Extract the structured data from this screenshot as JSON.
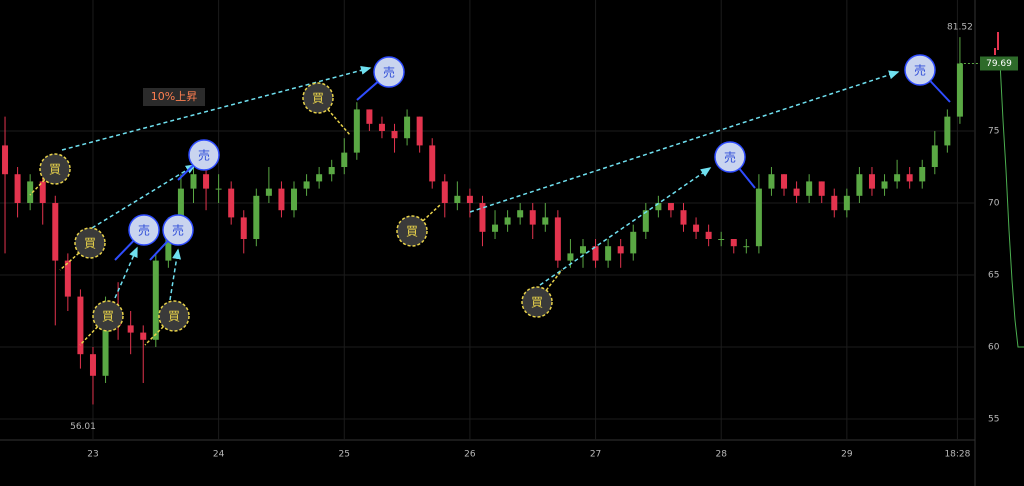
{
  "chart_data": {
    "type": "candlestick",
    "x": [
      22.3,
      22.4,
      22.5,
      22.6,
      22.7,
      22.8,
      22.9,
      23.0,
      23.1,
      23.2,
      23.3,
      23.4,
      23.5,
      23.6,
      23.7,
      23.8,
      23.9,
      24.0,
      24.1,
      24.2,
      24.3,
      24.4,
      24.5,
      24.6,
      24.7,
      24.8,
      24.9,
      25.0,
      25.1,
      25.2,
      25.3,
      25.4,
      25.5,
      25.6,
      25.7,
      25.8,
      25.9,
      26.0,
      26.1,
      26.2,
      26.3,
      26.4,
      26.5,
      26.6,
      26.7,
      26.8,
      26.9,
      27.0,
      27.1,
      27.2,
      27.3,
      27.4,
      27.5,
      27.6,
      27.7,
      27.8,
      27.9,
      28.0,
      28.1,
      28.2,
      28.3,
      28.4,
      28.5,
      28.6,
      28.7,
      28.8,
      28.9,
      29.0,
      29.1,
      29.2,
      29.3,
      29.4,
      29.5,
      29.6,
      29.7,
      29.8,
      29.9
    ],
    "open": [
      74,
      72,
      70,
      71.5,
      70,
      66,
      63.5,
      59.5,
      58,
      62.5,
      61.5,
      61,
      60.5,
      66,
      68.5,
      71,
      72,
      71,
      71,
      69,
      67.5,
      70.5,
      71,
      69.5,
      71,
      71.5,
      72,
      72.5,
      73.5,
      76.5,
      75.5,
      75,
      74.5,
      76,
      74,
      71.5,
      70,
      70.5,
      70,
      68,
      68.5,
      69,
      69.5,
      68.5,
      69,
      66,
      66.5,
      67,
      66,
      67,
      66.5,
      68,
      69.5,
      70,
      69.5,
      68.5,
      68,
      67.5,
      67.5,
      67,
      67,
      71,
      72,
      71,
      70.5,
      71.5,
      70.5,
      69.5,
      70.5,
      72,
      71,
      71.5,
      72,
      71.5,
      72.5,
      74,
      76
    ],
    "high": [
      76,
      72.5,
      72,
      71.8,
      70.5,
      66.5,
      64,
      60,
      63.5,
      64.5,
      62.5,
      61.5,
      66.5,
      69,
      72,
      73,
      72.5,
      72,
      71.5,
      69.5,
      71,
      72.5,
      71.5,
      71.5,
      72,
      72.5,
      73,
      74.5,
      77,
      76.5,
      76,
      75.5,
      76.5,
      76,
      74.5,
      72,
      71.5,
      71,
      70.5,
      69.5,
      69.5,
      70,
      70,
      70,
      69.5,
      67.5,
      67.5,
      67.5,
      67.5,
      67.5,
      68.5,
      70,
      70.5,
      70,
      70,
      69,
      68.5,
      68,
      67.5,
      67.5,
      72,
      72.5,
      72,
      71.5,
      72,
      71.5,
      71,
      71,
      72.5,
      72.5,
      72,
      73,
      72.5,
      73,
      75,
      76.5,
      81.52
    ],
    "low": [
      66.5,
      69,
      69.5,
      68.5,
      61.5,
      62.5,
      58.5,
      56.01,
      57.5,
      60.5,
      59.5,
      57.5,
      60,
      65.5,
      68,
      70,
      69.5,
      70,
      68.5,
      66.5,
      67,
      70,
      69,
      69,
      70.5,
      71,
      71.5,
      72,
      73,
      75,
      74.5,
      73.5,
      74,
      73.5,
      71,
      69,
      69.5,
      69,
      67,
      67.5,
      68,
      68.5,
      67.5,
      68,
      65.5,
      65.5,
      65.5,
      65.5,
      65.5,
      65.5,
      66,
      67.5,
      69,
      69,
      68,
      67.5,
      67,
      67,
      66.5,
      66.5,
      66.5,
      70.5,
      70.5,
      70,
      70,
      70,
      69,
      69,
      70,
      70.5,
      70.5,
      71,
      71,
      71,
      72,
      73.5,
      75.5
    ],
    "close": [
      72,
      70,
      71.5,
      70,
      66,
      63.5,
      59.5,
      58,
      62.5,
      61.5,
      61,
      60.5,
      66,
      68.5,
      71,
      72,
      71,
      71,
      69,
      67.5,
      70.5,
      71,
      69.5,
      71,
      71.5,
      72,
      72.5,
      73.5,
      76.5,
      75.5,
      75,
      74.5,
      76,
      74,
      71.5,
      70,
      70.5,
      70,
      68,
      68.5,
      69,
      69.5,
      68.5,
      69,
      66,
      66.5,
      67,
      66,
      67,
      66.5,
      68,
      69.5,
      70,
      69.5,
      68.5,
      68,
      67.5,
      67.5,
      67,
      67,
      71,
      72,
      71,
      70.5,
      71.5,
      70.5,
      69.5,
      70.5,
      72,
      71,
      71.5,
      72,
      71.5,
      72.5,
      74,
      76,
      79.69
    ],
    "up_color": "#5aa844",
    "down_color": "#e3344e",
    "xlim": [
      22.26,
      30.02
    ],
    "ylim": [
      53.54,
      84.1
    ],
    "xticks": [
      23,
      24,
      25,
      26,
      27,
      28,
      29,
      {
        "value": 29.88,
        "label": "18:28"
      }
    ],
    "yticks": [
      55,
      60,
      65,
      70,
      75
    ],
    "grid": true,
    "annotations": {
      "note": "10%上昇",
      "buy": [
        "買",
        "買",
        "買",
        "買",
        "買",
        "買",
        "買"
      ],
      "sell": [
        "売",
        "売",
        "売",
        "売",
        "売",
        "売"
      ]
    }
  }
}
